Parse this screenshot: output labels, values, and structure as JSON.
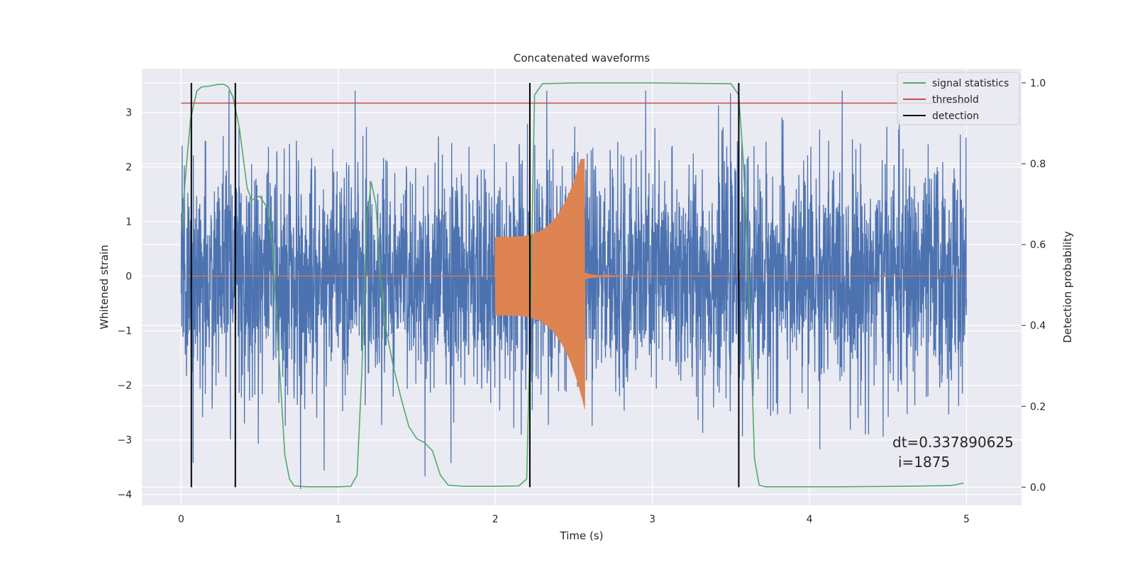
{
  "chart_data": {
    "type": "line",
    "title": "Concatenated waveforms",
    "xlabel": "Time (s)",
    "ylabel": "Whitened strain",
    "y2label": "Detection probability",
    "xlim": [
      -0.25,
      5.35
    ],
    "ylim": [
      -4.2,
      3.8
    ],
    "y2lim": [
      -0.045,
      1.035
    ],
    "grid": true,
    "xticks": [
      0,
      1,
      2,
      3,
      4,
      5
    ],
    "xtick_labels": [
      "0",
      "1",
      "2",
      "3",
      "4",
      "5"
    ],
    "yticks": [
      3,
      2,
      1,
      0,
      -1,
      -2,
      -3,
      -4
    ],
    "ytick_labels": [
      "3",
      "2",
      "1",
      "0",
      "−1",
      "−2",
      "−3",
      "−4"
    ],
    "y2ticks": [
      1.0,
      0.8,
      0.6,
      0.4,
      0.2,
      0.0
    ],
    "y2tick_labels": [
      "1.0",
      "0.8",
      "0.6",
      "0.4",
      "0.2",
      "0.0"
    ],
    "legend": {
      "placement": "top-right",
      "entries": [
        {
          "label": "signal statistics",
          "color": "#55a868"
        },
        {
          "label": "threshold",
          "color": "#c44e52"
        },
        {
          "label": "detection",
          "color": "#000000"
        }
      ]
    },
    "series": [
      {
        "kind": "noise",
        "color": "#4c72b0",
        "x_range": [
          0,
          5
        ],
        "approx_envelope": [
          -3.9,
          3.4
        ]
      },
      {
        "kind": "chirp",
        "color": "#dd8452",
        "x_start": 2.0,
        "x_peak": 2.57,
        "amplitude_start": 0.72,
        "amplitude_peak_pos": 2.15,
        "amplitude_peak_neg": -2.45,
        "ringdown_end": 2.95
      },
      {
        "name": "signal statistics",
        "axis": "right",
        "color": "#55a868",
        "x": [
          0.0,
          0.03,
          0.06,
          0.1,
          0.13,
          0.18,
          0.23,
          0.27,
          0.3,
          0.33,
          0.37,
          0.42,
          0.45,
          0.5,
          0.55,
          0.58,
          0.62,
          0.66,
          0.69,
          0.72,
          0.8,
          0.9,
          1.0,
          1.08,
          1.12,
          1.15,
          1.18,
          1.21,
          1.24,
          1.27,
          1.3,
          1.35,
          1.4,
          1.45,
          1.5,
          1.55,
          1.6,
          1.65,
          1.7,
          1.8,
          2.0,
          2.15,
          2.2,
          2.22,
          2.25,
          2.3,
          2.5,
          3.0,
          3.5,
          3.55,
          3.58,
          3.62,
          3.65,
          3.68,
          3.72,
          3.8,
          4.2,
          4.6,
          4.9,
          4.98
        ],
        "y": [
          0.63,
          0.78,
          0.91,
          0.98,
          0.99,
          0.992,
          0.996,
          0.997,
          0.99,
          0.965,
          0.89,
          0.74,
          0.71,
          0.72,
          0.69,
          0.6,
          0.34,
          0.08,
          0.02,
          0.003,
          0.001,
          0.001,
          0.001,
          0.002,
          0.03,
          0.28,
          0.65,
          0.755,
          0.7,
          0.52,
          0.4,
          0.3,
          0.22,
          0.15,
          0.12,
          0.11,
          0.09,
          0.03,
          0.005,
          0.002,
          0.002,
          0.003,
          0.02,
          0.35,
          0.97,
          0.998,
          1.0,
          1.0,
          0.998,
          0.97,
          0.8,
          0.45,
          0.07,
          0.005,
          0.001,
          0.001,
          0.001,
          0.002,
          0.004,
          0.01
        ]
      },
      {
        "name": "threshold",
        "axis": "right",
        "color": "#c44e52",
        "x": [
          0,
          5
        ],
        "y": [
          0.95,
          0.95
        ]
      }
    ],
    "detections": [
      0.065,
      0.345,
      2.22,
      3.55
    ],
    "annotation": {
      "line1": "dt=0.337890625",
      "line2": "i=1875"
    }
  }
}
